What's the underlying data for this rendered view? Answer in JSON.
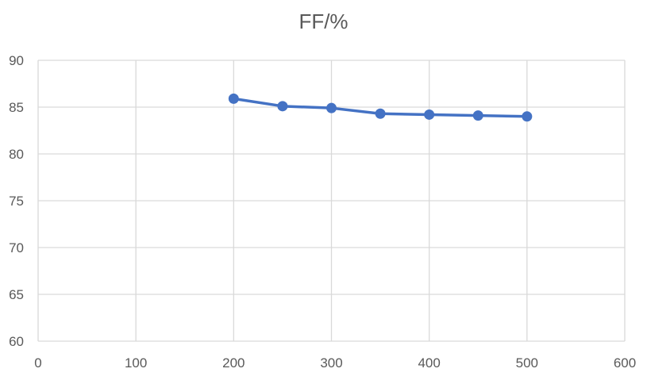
{
  "chart_data": {
    "type": "line",
    "title": "FF/%",
    "xlabel": "",
    "ylabel": "",
    "xlim": [
      0,
      600
    ],
    "ylim": [
      60,
      90
    ],
    "x_ticks": [
      0,
      100,
      200,
      300,
      400,
      500,
      600
    ],
    "y_ticks": [
      60,
      65,
      70,
      75,
      80,
      85,
      90
    ],
    "grid": true,
    "legend": "none",
    "series": [
      {
        "color": "#4472C4",
        "x": [
          200,
          250,
          300,
          350,
          400,
          450,
          500
        ],
        "y": [
          85.9,
          85.1,
          84.9,
          84.3,
          84.2,
          84.1,
          84.0
        ]
      }
    ]
  }
}
